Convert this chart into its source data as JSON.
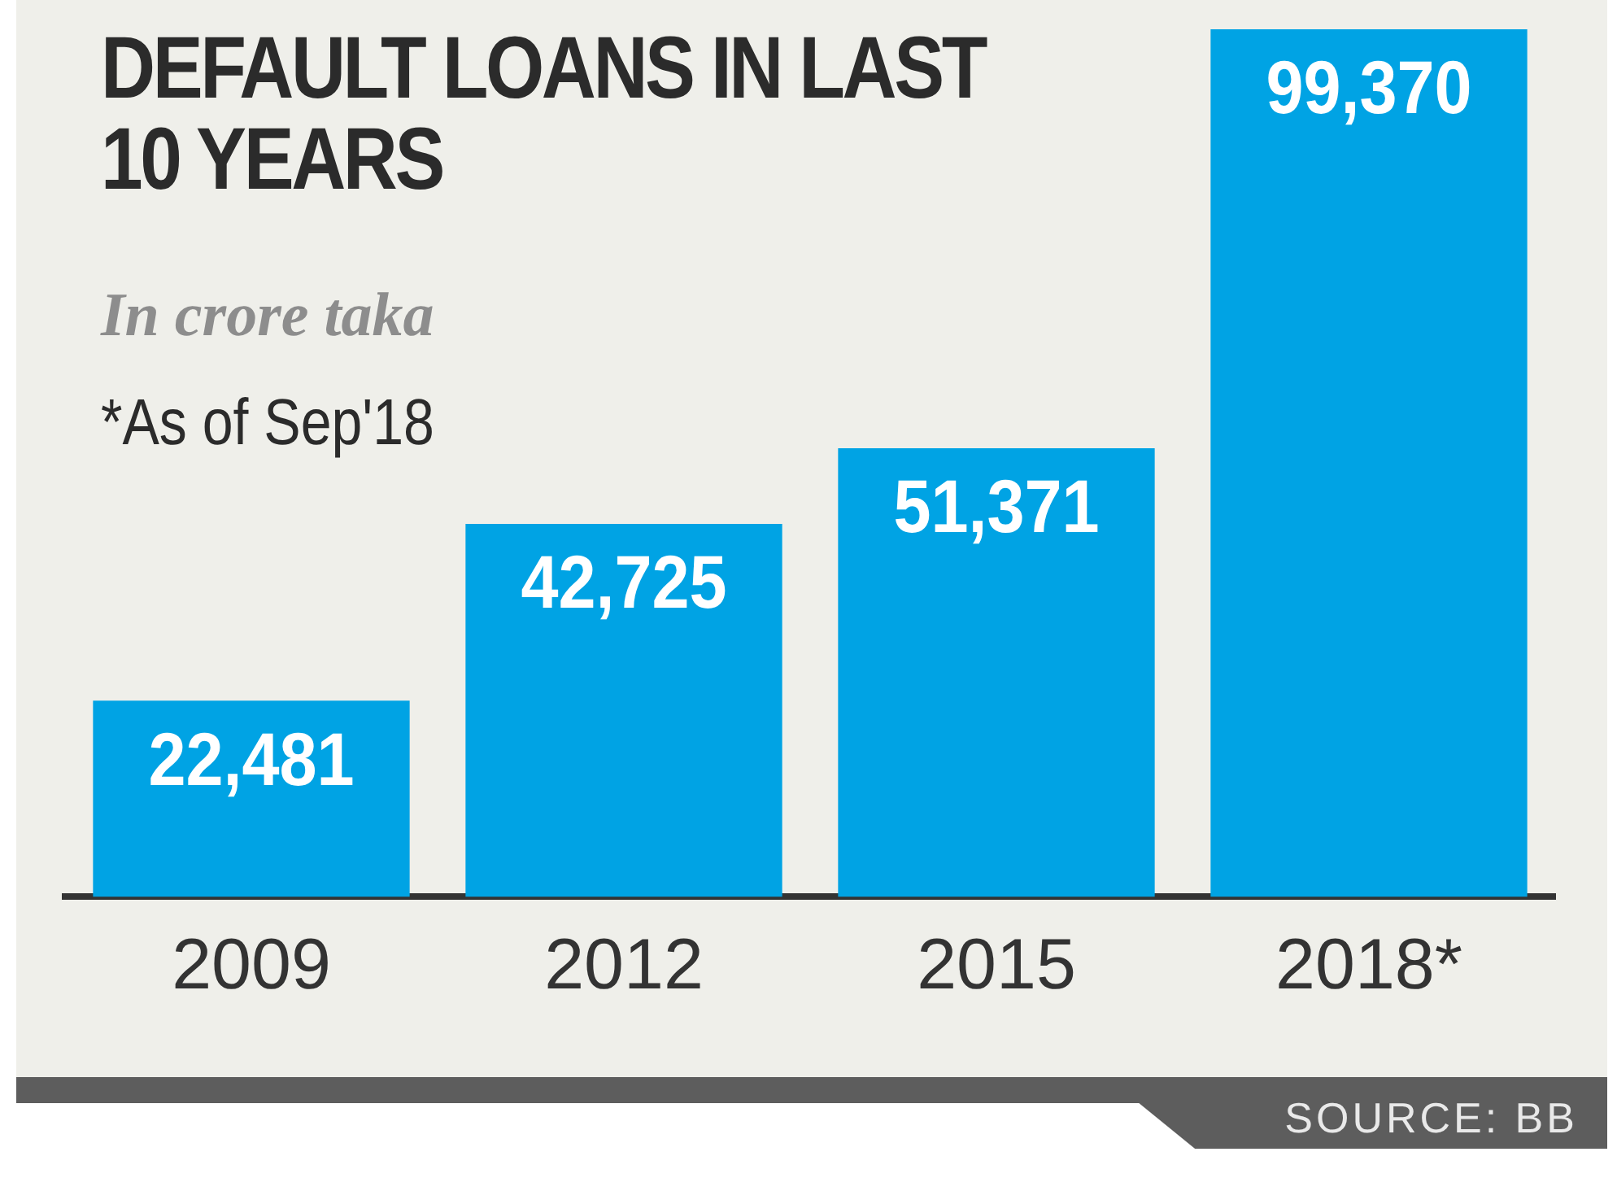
{
  "chart_data": {
    "type": "bar",
    "title": "DEFAULT LOANS IN LAST 10 YEARS",
    "subtitle": "In crore taka",
    "annotations": [
      "*As of Sep'18",
      "SOURCE: BB"
    ],
    "categories": [
      "2009",
      "2012",
      "2015",
      "2018*"
    ],
    "values": [
      22481,
      42725,
      51371,
      99370
    ],
    "value_labels": [
      "22,481",
      "42,725",
      "51,371",
      "99,370"
    ],
    "color": "#00a3e4",
    "grid": false,
    "legend": false,
    "tick_labels": "x"
  }
}
